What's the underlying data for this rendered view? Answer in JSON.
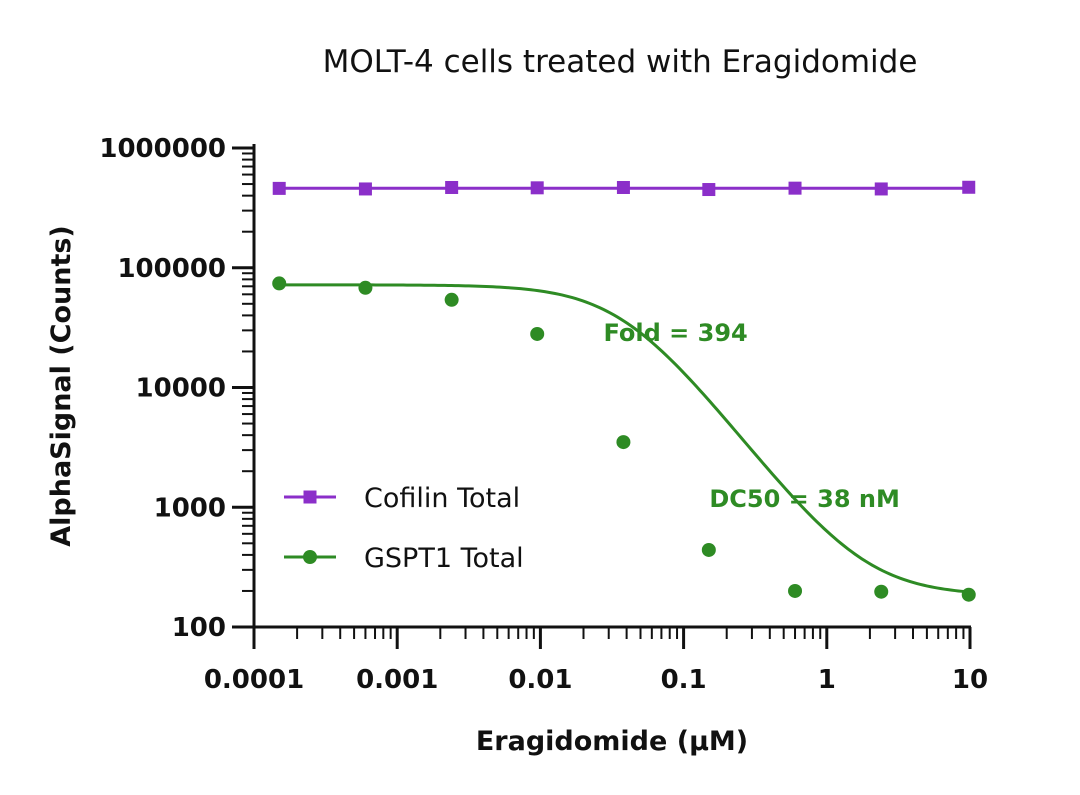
{
  "chart_data": {
    "type": "scatter",
    "title": "MOLT-4 cells treated with Eragidomide",
    "xlabel": "Eragidomide (µM)",
    "ylabel": "AlphaSignal (Counts)",
    "x_scale": "log",
    "y_scale": "log",
    "xlim": [
      0.0001,
      10
    ],
    "ylim": [
      100,
      1000000
    ],
    "x_ticks": [
      "0.0001",
      "0.001",
      "0.01",
      "0.1",
      "1",
      "10"
    ],
    "y_ticks": [
      "100",
      "1000",
      "10000",
      "100000",
      "1000000"
    ],
    "grid": false,
    "legend_position": "lower-left",
    "series": [
      {
        "name": "Cofilin Total",
        "color": "#8B2FC9",
        "marker": "square",
        "fit": "line",
        "x": [
          0.00015,
          0.0006,
          0.0024,
          0.0095,
          0.038,
          0.15,
          0.6,
          2.4,
          9.8
        ],
        "y": [
          460000,
          455000,
          468000,
          465000,
          468000,
          450000,
          462000,
          455000,
          470000
        ]
      },
      {
        "name": "GSPT1 Total",
        "color": "#2E8B24",
        "marker": "circle",
        "fit": "sigmoid",
        "fit_top": 72000,
        "fit_bottom": 183,
        "fit_ec50": 0.038,
        "fit_hill": 1.55,
        "x": [
          0.00015,
          0.0006,
          0.0024,
          0.0095,
          0.038,
          0.15,
          0.6,
          2.4,
          9.8
        ],
        "y": [
          74000,
          68000,
          54000,
          28000,
          3500,
          440,
          200,
          197,
          186
        ]
      }
    ],
    "annotations": [
      {
        "text": "Fold = 394",
        "x": 0.04,
        "y": 28000,
        "color": "#2E8B24"
      },
      {
        "text": "DC50 = 38 nM",
        "x": 0.7,
        "y": 1150,
        "color": "#2E8B24"
      }
    ]
  }
}
